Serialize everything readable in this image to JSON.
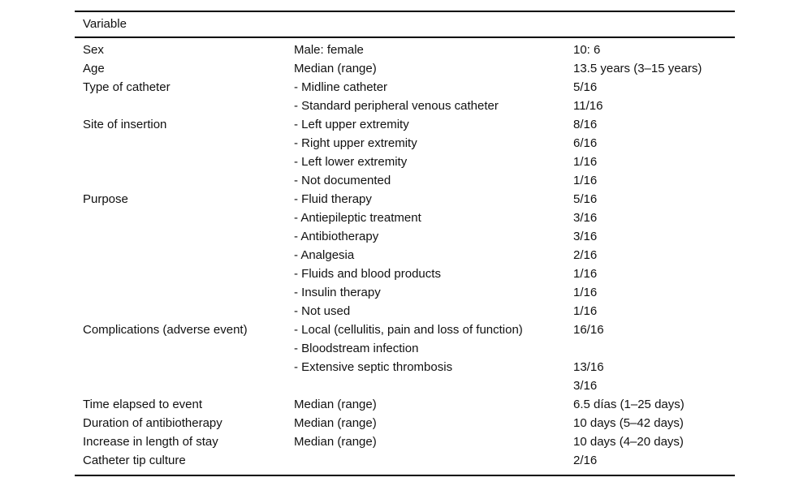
{
  "page": {
    "background": "#ffffff",
    "text_color": "#111111",
    "rule_color": "#000000"
  },
  "table": {
    "header": "Variable",
    "rows": [
      {
        "variable": "Sex",
        "descriptor": "Male: female",
        "value": "10: 6"
      },
      {
        "variable": "Age",
        "descriptor": "Median (range)",
        "value": "13.5 years (3–15 years)"
      },
      {
        "variable": "Type of catheter",
        "descriptor": "- Midline catheter",
        "value": "5/16"
      },
      {
        "variable": "",
        "descriptor": "- Standard peripheral venous catheter",
        "value": "11/16"
      },
      {
        "variable": "Site of insertion",
        "descriptor": "- Left upper extremity",
        "value": "8/16"
      },
      {
        "variable": "",
        "descriptor": "- Right upper extremity",
        "value": "6/16"
      },
      {
        "variable": "",
        "descriptor": "- Left lower extremity",
        "value": "1/16"
      },
      {
        "variable": "",
        "descriptor": "- Not documented",
        "value": "1/16"
      },
      {
        "variable": "Purpose",
        "descriptor": "- Fluid therapy",
        "value": "5/16"
      },
      {
        "variable": "",
        "descriptor": "- Antiepileptic treatment",
        "value": "3/16"
      },
      {
        "variable": "",
        "descriptor": "- Antibiotherapy",
        "value": "3/16"
      },
      {
        "variable": "",
        "descriptor": "- Analgesia",
        "value": "2/16"
      },
      {
        "variable": "",
        "descriptor": "- Fluids and blood products",
        "value": "1/16"
      },
      {
        "variable": "",
        "descriptor": "- Insulin therapy",
        "value": "1/16"
      },
      {
        "variable": "",
        "descriptor": "- Not used",
        "value": "1/16"
      },
      {
        "variable": "Complications (adverse event)",
        "descriptor": "- Local (cellulitis, pain and loss of function)",
        "value": "16/16"
      },
      {
        "variable": "",
        "descriptor": "- Bloodstream infection",
        "value": ""
      },
      {
        "variable": "",
        "descriptor": "- Extensive septic thrombosis",
        "value": "13/16"
      },
      {
        "variable": "",
        "descriptor": "",
        "value": "3/16"
      },
      {
        "variable": "Time elapsed to event",
        "descriptor": "Median (range)",
        "value": "6.5 días (1–25 days)"
      },
      {
        "variable": "Duration of antibiotherapy",
        "descriptor": "Median (range)",
        "value": "10 days (5–42 days)"
      },
      {
        "variable": "Increase in length of stay",
        "descriptor": "Median (range)",
        "value": "10 days (4–20 days)"
      },
      {
        "variable": "Catheter tip culture",
        "descriptor": "",
        "value": "2/16"
      }
    ]
  }
}
